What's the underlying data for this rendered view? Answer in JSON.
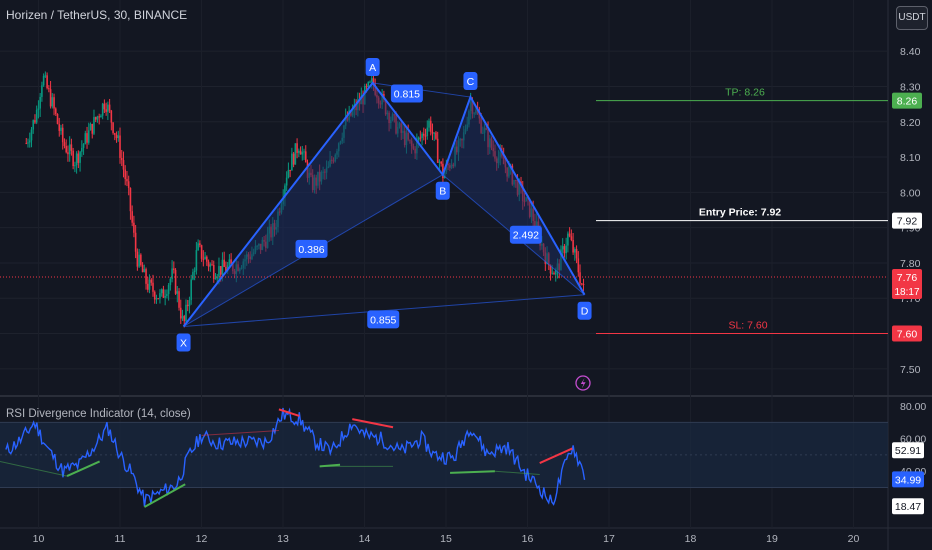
{
  "header": {
    "title": "Horizen / TetherUS, 30, BINANCE",
    "currency": "USDT"
  },
  "indicator": {
    "title": "RSI Divergence Indicator (14, close)",
    "axis_labels": [
      "80.00",
      "60.00",
      "40.00"
    ],
    "badges": [
      {
        "label": "52.91",
        "value": 52.91,
        "style": "light"
      },
      {
        "label": "34.99",
        "value": 34.99,
        "style": "blue"
      },
      {
        "label": "18.47",
        "value": 18.47,
        "style": "light"
      }
    ]
  },
  "colors": {
    "background": "#131722",
    "up_candle": "#089981",
    "down_candle": "#f23645",
    "pattern": "#2962ff",
    "pattern_fill": "#1c2c5c",
    "tp": "#4caf50",
    "sl": "#f23645",
    "rsi_line": "#2962ff",
    "rsi_band": "#1a2940",
    "div_bull": "#4caf50",
    "div_bear": "#f23645"
  },
  "chart_data": {
    "type": "candlestick",
    "symbol": "Horizen / TetherUS",
    "interval": "30",
    "exchange": "BINANCE",
    "x_ticks": [
      "10",
      "11",
      "12",
      "13",
      "14",
      "15",
      "16",
      "17",
      "18",
      "19",
      "20"
    ],
    "y_ticks": [
      "8.40",
      "8.30",
      "8.20",
      "8.10",
      "8.00",
      "7.90",
      "7.80",
      "7.70",
      "7.60",
      "7.50"
    ],
    "ylim": [
      7.44,
      8.46
    ],
    "price_path": [
      [
        9.85,
        8.14
      ],
      [
        9.97,
        8.22
      ],
      [
        10.05,
        8.33
      ],
      [
        10.17,
        8.25
      ],
      [
        10.3,
        8.14
      ],
      [
        10.45,
        8.09
      ],
      [
        10.6,
        8.16
      ],
      [
        10.82,
        8.26
      ],
      [
        10.98,
        8.14
      ],
      [
        11.1,
        8.0
      ],
      [
        11.2,
        7.82
      ],
      [
        11.33,
        7.74
      ],
      [
        11.5,
        7.7
      ],
      [
        11.65,
        7.77
      ],
      [
        11.78,
        7.62
      ],
      [
        11.95,
        7.84
      ],
      [
        12.15,
        7.78
      ],
      [
        12.4,
        7.79
      ],
      [
        12.7,
        7.84
      ],
      [
        12.9,
        7.9
      ],
      [
        13.05,
        8.06
      ],
      [
        13.2,
        8.14
      ],
      [
        13.35,
        8.02
      ],
      [
        13.55,
        8.06
      ],
      [
        13.75,
        8.19
      ],
      [
        14.1,
        8.31
      ],
      [
        14.35,
        8.2
      ],
      [
        14.6,
        8.12
      ],
      [
        14.8,
        8.2
      ],
      [
        14.96,
        8.05
      ],
      [
        15.2,
        8.14
      ],
      [
        15.3,
        8.26
      ],
      [
        15.55,
        8.13
      ],
      [
        15.8,
        8.05
      ],
      [
        16.05,
        7.94
      ],
      [
        16.25,
        7.8
      ],
      [
        16.35,
        7.77
      ],
      [
        16.5,
        7.88
      ],
      [
        16.58,
        7.82
      ],
      [
        16.7,
        7.71
      ]
    ],
    "harmonic_pattern": {
      "points": [
        {
          "label": "X",
          "x": 11.78,
          "price": 7.62
        },
        {
          "label": "A",
          "x": 14.1,
          "price": 8.31
        },
        {
          "label": "B",
          "x": 14.96,
          "price": 8.05
        },
        {
          "label": "C",
          "x": 15.3,
          "price": 8.27
        },
        {
          "label": "D",
          "x": 16.7,
          "price": 7.71
        }
      ],
      "ratios": [
        {
          "label": "0.815",
          "x": 14.52,
          "price": 8.28
        },
        {
          "label": "0.386",
          "x": 13.35,
          "price": 7.84
        },
        {
          "label": "2.492",
          "x": 15.98,
          "price": 7.88
        },
        {
          "label": "0.855",
          "x": 14.23,
          "price": 7.64
        }
      ]
    },
    "levels": [
      {
        "name": "tp",
        "label": "TP: 8.26",
        "price": 8.26,
        "badge": "8.26"
      },
      {
        "name": "entry",
        "label": "Entry Price: 7.92",
        "price": 7.92,
        "badge": "7.92"
      },
      {
        "name": "sl",
        "label": "SL: 7.60",
        "price": 7.6,
        "badge": "7.60"
      }
    ],
    "last_price": {
      "price": 7.76,
      "label": "7.76",
      "countdown": "18:17"
    },
    "rsi": {
      "ylim": [
        10,
        85
      ],
      "band": [
        30,
        70
      ],
      "path": [
        [
          9.6,
          52
        ],
        [
          9.8,
          60
        ],
        [
          9.95,
          70
        ],
        [
          10.1,
          55
        ],
        [
          10.3,
          40
        ],
        [
          10.5,
          44
        ],
        [
          10.7,
          56
        ],
        [
          10.85,
          67
        ],
        [
          11.0,
          50
        ],
        [
          11.15,
          38
        ],
        [
          11.3,
          22
        ],
        [
          11.5,
          27
        ],
        [
          11.7,
          32
        ],
        [
          11.85,
          50
        ],
        [
          12.0,
          62
        ],
        [
          12.2,
          57
        ],
        [
          12.5,
          58
        ],
        [
          12.8,
          58
        ],
        [
          13.0,
          75
        ],
        [
          13.2,
          72
        ],
        [
          13.4,
          58
        ],
        [
          13.6,
          52
        ],
        [
          13.85,
          70
        ],
        [
          14.0,
          62
        ],
        [
          14.2,
          60
        ],
        [
          14.45,
          52
        ],
        [
          14.7,
          60
        ],
        [
          14.85,
          50
        ],
        [
          15.1,
          48
        ],
        [
          15.3,
          68
        ],
        [
          15.5,
          51
        ],
        [
          15.75,
          55
        ],
        [
          15.95,
          40
        ],
        [
          16.15,
          30
        ],
        [
          16.3,
          20
        ],
        [
          16.45,
          42
        ],
        [
          16.55,
          56
        ],
        [
          16.7,
          38
        ]
      ],
      "divergences": [
        {
          "kind": "bull",
          "from": [
            10.35,
            37
          ],
          "to": [
            10.75,
            46
          ]
        },
        {
          "kind": "bull",
          "from": [
            11.3,
            18
          ],
          "to": [
            11.8,
            32
          ]
        },
        {
          "kind": "bear",
          "from": [
            12.95,
            78
          ],
          "to": [
            13.2,
            74
          ]
        },
        {
          "kind": "bull",
          "from": [
            13.45,
            43
          ],
          "to": [
            13.7,
            44
          ]
        },
        {
          "kind": "bear",
          "from": [
            13.85,
            72
          ],
          "to": [
            14.35,
            67
          ]
        },
        {
          "kind": "bull",
          "from": [
            15.05,
            39
          ],
          "to": [
            15.6,
            40
          ]
        },
        {
          "kind": "bear",
          "from": [
            16.15,
            45
          ],
          "to": [
            16.55,
            54
          ]
        }
      ]
    }
  }
}
